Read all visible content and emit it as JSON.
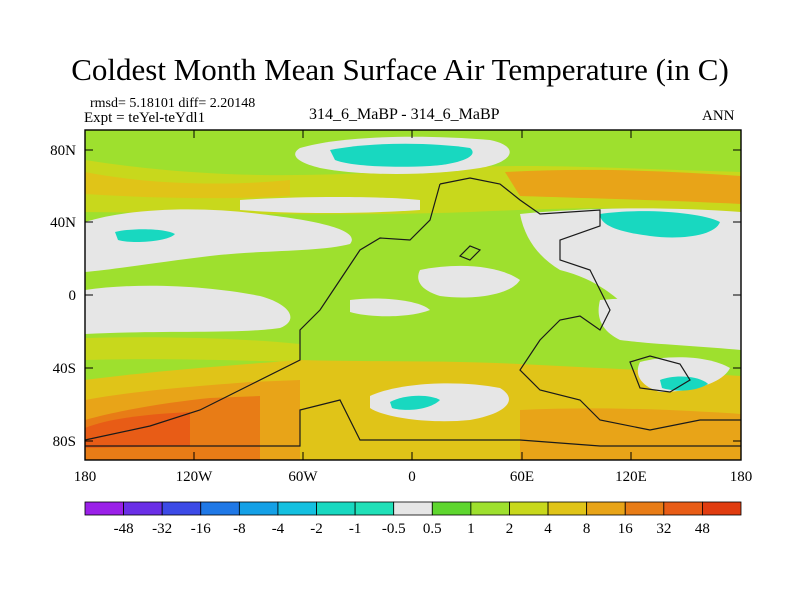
{
  "title": "Coldest Month Mean Surface Air Temperature (in C)",
  "stats": "rmsd= 5.18101 diff= 2.20148",
  "expt": "Expt = teYel-teYdl1",
  "center_label": "314_6_MaBP - 314_6_MaBP",
  "season": "ANN",
  "lat_ticks": [
    "80N",
    "40N",
    "0",
    "40S",
    "80S"
  ],
  "lon_ticks": [
    "180",
    "120W",
    "60W",
    "0",
    "60E",
    "120E",
    "180"
  ],
  "colorbar": {
    "labels": [
      "-48",
      "-32",
      "-16",
      "-8",
      "-4",
      "-2",
      "-1",
      "-0.5",
      "0.5",
      "1",
      "2",
      "4",
      "8",
      "16",
      "32",
      "48"
    ],
    "colors": [
      "#9a20e8",
      "#6a2ee6",
      "#3c4ae6",
      "#1f78e6",
      "#14a0e6",
      "#14c0e0",
      "#18d8c0",
      "#20e0b8",
      "#e6e6e6",
      "#5ed62e",
      "#9ee02e",
      "#c8d81c",
      "#e0c418",
      "#e8a418",
      "#e87c16",
      "#e85c16",
      "#e03c10"
    ]
  },
  "chart_data": {
    "type": "heatmap",
    "title": "Coldest Month Mean Surface Air Temperature (in C)",
    "units": "C",
    "x_axis": {
      "range": [
        -180,
        180
      ],
      "ticks": [
        "180",
        "120W",
        "60W",
        "0",
        "60E",
        "120E",
        "180"
      ]
    },
    "y_axis": {
      "range": [
        -90,
        90
      ],
      "ticks": [
        "80N",
        "40N",
        "0",
        "40S",
        "80S"
      ]
    },
    "contour_levels": [
      -48,
      -32,
      -16,
      -8,
      -4,
      -2,
      -1,
      -0.5,
      0.5,
      1,
      2,
      4,
      8,
      16,
      32,
      48
    ],
    "rmsd": 5.18101,
    "diff": 2.20148
  }
}
